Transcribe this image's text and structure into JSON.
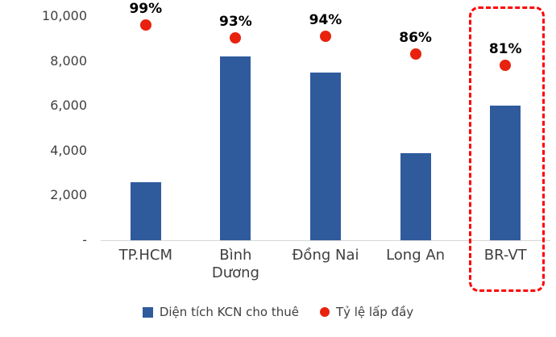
{
  "chart_data": {
    "type": "bar",
    "title": "",
    "categories": [
      "TP.HCM",
      "Bình Dương",
      "Đồng Nai",
      "Long An",
      "BR-VT"
    ],
    "series": [
      {
        "name": "Diện tích KCN cho thuê",
        "type": "bar",
        "color": "#2f5b9d",
        "values": [
          2600,
          8200,
          7500,
          3900,
          6000
        ]
      },
      {
        "name": "Tỷ lệ lấp đầy",
        "type": "point",
        "color": "#e8220e",
        "unit": "%",
        "values": [
          99,
          93,
          94,
          86,
          81
        ],
        "labels": [
          "99%",
          "93%",
          "94%",
          "86%",
          "81%"
        ],
        "plotted_on_primary_axis_as": [
          9900,
          9300,
          9400,
          8600,
          8100
        ]
      }
    ],
    "ylim": [
      0,
      10000
    ],
    "yticks": [
      {
        "value": 0,
        "label": "-"
      },
      {
        "value": 2000,
        "label": "2,000"
      },
      {
        "value": 4000,
        "label": "4,000"
      },
      {
        "value": 6000,
        "label": "6,000"
      },
      {
        "value": 8000,
        "label": "8,000"
      },
      {
        "value": 10000,
        "label": "10,000"
      }
    ],
    "grid": false,
    "legend_position": "bottom",
    "highlight": {
      "category": "BR-VT",
      "style": "red-dashed-box",
      "color": "#ff0000"
    }
  },
  "legend": {
    "items": [
      {
        "label": "Diện tích KCN cho thuê",
        "marker": "square",
        "color": "#2f5b9d"
      },
      {
        "label": "Tỷ lệ lấp đầy",
        "marker": "circle",
        "color": "#e8220e"
      }
    ]
  }
}
